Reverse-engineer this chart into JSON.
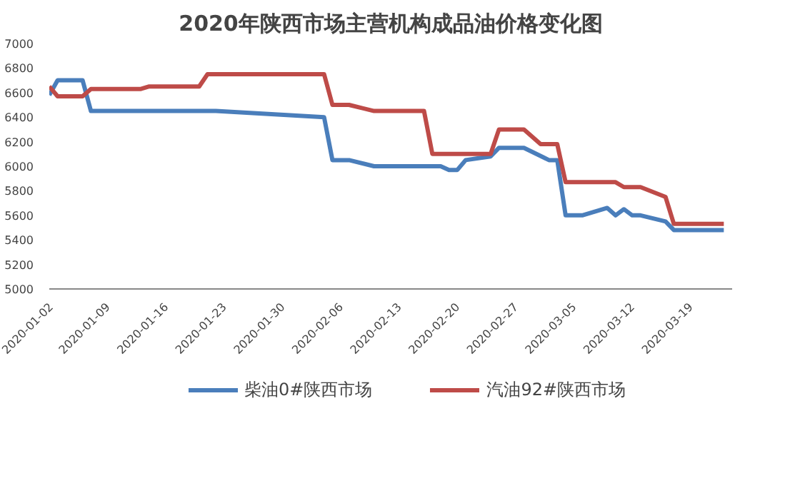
{
  "chart_data": {
    "type": "line",
    "title": "2020年陕西市场主营机构成品油价格变化图",
    "xlim": [
      "2020-01-02",
      "2020-03-24"
    ],
    "xticks": [
      "2020-01-02",
      "2020-01-09",
      "2020-01-16",
      "2020-01-23",
      "2020-01-30",
      "2020-02-06",
      "2020-02-13",
      "2020-02-20",
      "2020-02-27",
      "2020-03-05",
      "2020-03-12",
      "2020-03-19"
    ],
    "ylim": [
      5000,
      7000
    ],
    "yticks": [
      5000,
      5200,
      5400,
      5600,
      5800,
      6000,
      6200,
      6400,
      6600,
      6800,
      7000
    ],
    "grid": false,
    "legend": "bottom",
    "line_style": "solid",
    "marker": "none",
    "series": [
      {
        "name": "柴油0#陕西市场",
        "color": "#4a7ebb",
        "x": [
          "2020-01-02",
          "2020-01-03",
          "2020-01-06",
          "2020-01-07",
          "2020-01-22",
          "2020-02-04",
          "2020-02-05",
          "2020-02-07",
          "2020-02-10",
          "2020-02-18",
          "2020-02-19",
          "2020-02-20",
          "2020-02-21",
          "2020-02-24",
          "2020-02-25",
          "2020-02-28",
          "2020-03-02",
          "2020-03-03",
          "2020-03-04",
          "2020-03-06",
          "2020-03-09",
          "2020-03-10",
          "2020-03-11",
          "2020-03-12",
          "2020-03-13",
          "2020-03-16",
          "2020-03-17",
          "2020-03-23"
        ],
        "values": [
          6580,
          6700,
          6700,
          6450,
          6450,
          6400,
          6050,
          6050,
          6000,
          6000,
          5970,
          5970,
          6050,
          6080,
          6150,
          6150,
          6050,
          6050,
          5600,
          5600,
          5660,
          5600,
          5650,
          5600,
          5600,
          5550,
          5480,
          5480
        ]
      },
      {
        "name": "汽油92#陕西市场",
        "color": "#be4b48",
        "x": [
          "2020-01-02",
          "2020-01-03",
          "2020-01-06",
          "2020-01-07",
          "2020-01-13",
          "2020-01-14",
          "2020-01-20",
          "2020-01-21",
          "2020-02-04",
          "2020-02-05",
          "2020-02-07",
          "2020-02-10",
          "2020-02-16",
          "2020-02-17",
          "2020-02-24",
          "2020-02-25",
          "2020-02-28",
          "2020-03-01",
          "2020-03-03",
          "2020-03-04",
          "2020-03-10",
          "2020-03-11",
          "2020-03-13",
          "2020-03-16",
          "2020-03-17",
          "2020-03-23"
        ],
        "values": [
          6650,
          6570,
          6570,
          6630,
          6630,
          6650,
          6650,
          6750,
          6750,
          6500,
          6500,
          6450,
          6450,
          6100,
          6100,
          6300,
          6300,
          6180,
          6180,
          5870,
          5870,
          5830,
          5830,
          5750,
          5530,
          5530
        ]
      }
    ]
  }
}
